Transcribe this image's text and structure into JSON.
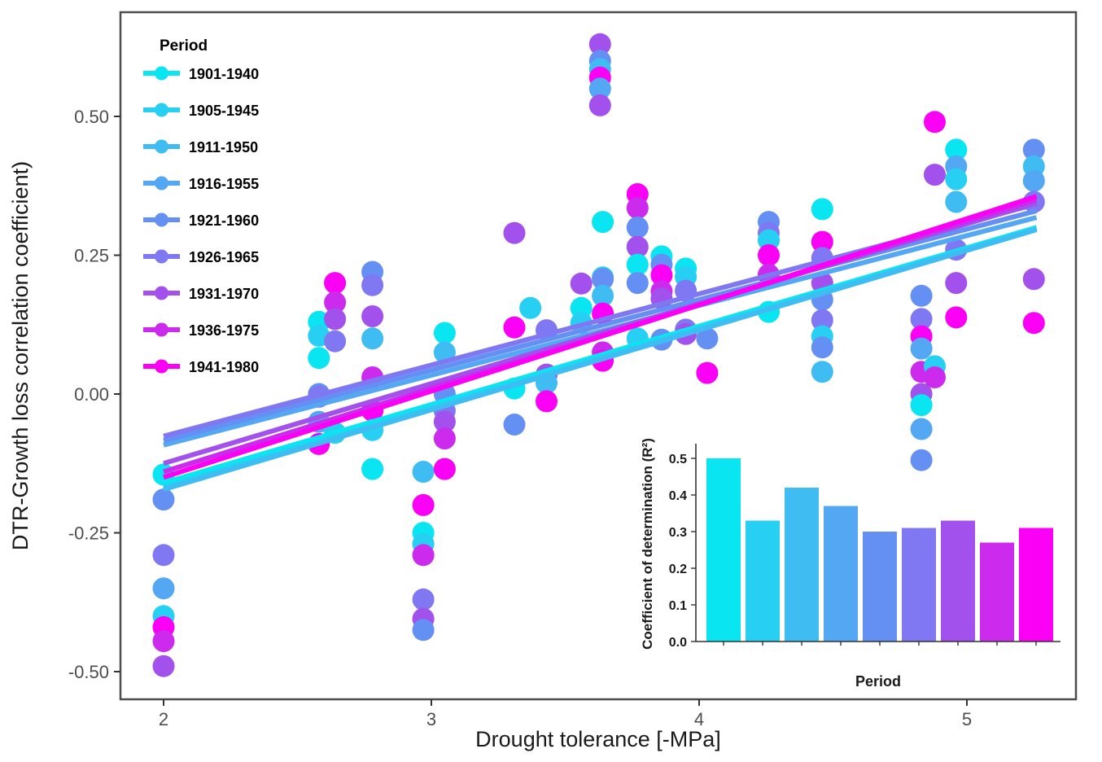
{
  "figure": {
    "background": "#FFFFFF",
    "panel_border_color": "#4D4D4D",
    "tick_color": "#333333",
    "tick_label_color": "#4D4D4D"
  },
  "chart_data": {
    "type": "scatter",
    "title": "",
    "xlabel": "Drought tolerance [-MPa]",
    "ylabel": "DTR-Growth loss correlation coefficient)",
    "xlim": [
      1.84,
      5.41
    ],
    "ylim": [
      -0.555,
      0.69
    ],
    "xticks": {
      "values": [
        2,
        3,
        4,
        5
      ],
      "labels": [
        "2",
        "3",
        "4",
        "5"
      ]
    },
    "yticks": {
      "values": [
        0.5,
        0.25,
        0,
        -0.25,
        -0.5
      ],
      "labels": [
        "0.50",
        "0.25",
        "0.00",
        "-0.25",
        "-0.50"
      ]
    },
    "grid": "off",
    "legend_title": "Period",
    "legend_position": "top-left-inside",
    "series": [
      {
        "name": "1901-1940",
        "color": "#0AE5F2"
      },
      {
        "name": "1905-1945",
        "color": "#27CFF2"
      },
      {
        "name": "1911-1950",
        "color": "#3FBCF2"
      },
      {
        "name": "1916-1955",
        "color": "#53A7F3"
      },
      {
        "name": "1921-1960",
        "color": "#6590F3"
      },
      {
        "name": "1926-1965",
        "color": "#8078F2"
      },
      {
        "name": "1931-1970",
        "color": "#A251ED"
      },
      {
        "name": "1936-1975",
        "color": "#CC2BEE"
      },
      {
        "name": "1941-1980",
        "color": "#FA00F5"
      }
    ],
    "points_format": "[drought_tolerance_x, correlation_y, series_index]",
    "points": [
      [
        2.0,
        -0.145,
        0
      ],
      [
        2.0,
        -0.19,
        4
      ],
      [
        2.0,
        -0.29,
        5
      ],
      [
        2.0,
        -0.35,
        3
      ],
      [
        2.0,
        -0.4,
        1
      ],
      [
        2.0,
        -0.42,
        8
      ],
      [
        2.0,
        -0.445,
        7
      ],
      [
        2.0,
        -0.49,
        6
      ],
      [
        2.58,
        0.13,
        0
      ],
      [
        2.58,
        0.105,
        1
      ],
      [
        2.58,
        0.065,
        0
      ],
      [
        2.58,
        0.0,
        4
      ],
      [
        2.58,
        -0.005,
        5
      ],
      [
        2.58,
        -0.05,
        3
      ],
      [
        2.58,
        -0.09,
        8
      ],
      [
        2.64,
        0.2,
        8
      ],
      [
        2.64,
        0.165,
        7
      ],
      [
        2.64,
        0.135,
        6
      ],
      [
        2.64,
        0.095,
        5
      ],
      [
        2.64,
        -0.07,
        1
      ],
      [
        2.78,
        0.22,
        4
      ],
      [
        2.78,
        0.196,
        5
      ],
      [
        2.78,
        0.14,
        6
      ],
      [
        2.78,
        0.1,
        2
      ],
      [
        2.78,
        0.03,
        7
      ],
      [
        2.78,
        -0.03,
        8
      ],
      [
        2.78,
        -0.065,
        1
      ],
      [
        2.78,
        -0.135,
        0
      ],
      [
        2.97,
        -0.14,
        2
      ],
      [
        2.97,
        -0.2,
        8
      ],
      [
        2.97,
        -0.25,
        0
      ],
      [
        2.97,
        -0.27,
        1
      ],
      [
        2.97,
        -0.29,
        7
      ],
      [
        2.97,
        -0.37,
        5
      ],
      [
        2.97,
        -0.405,
        6
      ],
      [
        2.97,
        -0.425,
        4
      ],
      [
        3.05,
        0.11,
        0
      ],
      [
        3.05,
        0.075,
        2
      ],
      [
        3.05,
        0.0,
        4
      ],
      [
        3.05,
        -0.03,
        5
      ],
      [
        3.05,
        -0.05,
        6
      ],
      [
        3.05,
        -0.08,
        7
      ],
      [
        3.05,
        -0.135,
        8
      ],
      [
        3.31,
        0.29,
        6
      ],
      [
        3.31,
        0.12,
        8
      ],
      [
        3.31,
        0.01,
        0
      ],
      [
        3.31,
        -0.055,
        4
      ],
      [
        3.37,
        0.155,
        1
      ],
      [
        3.43,
        0.115,
        5
      ],
      [
        3.43,
        0.035,
        6
      ],
      [
        3.43,
        0.02,
        2
      ],
      [
        3.43,
        -0.013,
        8
      ],
      [
        3.56,
        0.199,
        6
      ],
      [
        3.56,
        0.155,
        0
      ],
      [
        3.56,
        0.128,
        1
      ],
      [
        3.63,
        0.63,
        6
      ],
      [
        3.63,
        0.6,
        4
      ],
      [
        3.63,
        0.585,
        2
      ],
      [
        3.63,
        0.57,
        8
      ],
      [
        3.63,
        0.55,
        3
      ],
      [
        3.63,
        0.52,
        6
      ],
      [
        3.64,
        0.31,
        0
      ],
      [
        3.64,
        0.21,
        1
      ],
      [
        3.64,
        0.207,
        4
      ],
      [
        3.64,
        0.177,
        2
      ],
      [
        3.64,
        0.145,
        8
      ],
      [
        3.64,
        0.075,
        7
      ],
      [
        3.64,
        0.06,
        8
      ],
      [
        3.77,
        0.36,
        8
      ],
      [
        3.77,
        0.335,
        7
      ],
      [
        3.77,
        0.3,
        4
      ],
      [
        3.77,
        0.265,
        6
      ],
      [
        3.77,
        0.233,
        0
      ],
      [
        3.77,
        0.2,
        4
      ],
      [
        3.77,
        0.1,
        1
      ],
      [
        3.86,
        0.248,
        0
      ],
      [
        3.86,
        0.233,
        4
      ],
      [
        3.86,
        0.214,
        8
      ],
      [
        3.86,
        0.185,
        7
      ],
      [
        3.86,
        0.172,
        6
      ],
      [
        3.86,
        0.098,
        4
      ],
      [
        3.95,
        0.226,
        0
      ],
      [
        3.95,
        0.211,
        1
      ],
      [
        3.95,
        0.186,
        5
      ],
      [
        3.95,
        0.116,
        5
      ],
      [
        3.95,
        0.108,
        6
      ],
      [
        4.03,
        0.1,
        4
      ],
      [
        4.03,
        0.038,
        8
      ],
      [
        4.26,
        0.31,
        4
      ],
      [
        4.26,
        0.29,
        5
      ],
      [
        4.26,
        0.277,
        1
      ],
      [
        4.26,
        0.25,
        8
      ],
      [
        4.26,
        0.215,
        7
      ],
      [
        4.26,
        0.148,
        0
      ],
      [
        4.46,
        0.333,
        0
      ],
      [
        4.46,
        0.274,
        8
      ],
      [
        4.46,
        0.245,
        5
      ],
      [
        4.46,
        0.2,
        6
      ],
      [
        4.46,
        0.17,
        4
      ],
      [
        4.46,
        0.133,
        5
      ],
      [
        4.46,
        0.104,
        1
      ],
      [
        4.46,
        0.084,
        4
      ],
      [
        4.46,
        0.04,
        2
      ],
      [
        4.83,
        0.177,
        4
      ],
      [
        4.83,
        0.135,
        5
      ],
      [
        4.83,
        0.104,
        8
      ],
      [
        4.83,
        0.082,
        3
      ],
      [
        4.83,
        0.04,
        7
      ],
      [
        4.83,
        0.0,
        6
      ],
      [
        4.83,
        -0.02,
        0
      ],
      [
        4.83,
        -0.063,
        3
      ],
      [
        4.83,
        -0.119,
        4
      ],
      [
        4.88,
        0.49,
        8
      ],
      [
        4.88,
        0.395,
        6
      ],
      [
        4.88,
        0.05,
        1
      ],
      [
        4.88,
        0.03,
        7
      ],
      [
        4.96,
        0.44,
        0
      ],
      [
        4.96,
        0.41,
        3
      ],
      [
        4.96,
        0.387,
        1
      ],
      [
        4.96,
        0.346,
        2
      ],
      [
        4.96,
        0.26,
        5
      ],
      [
        4.96,
        0.2,
        6
      ],
      [
        4.96,
        0.138,
        8
      ],
      [
        5.25,
        0.44,
        4
      ],
      [
        5.25,
        0.41,
        2
      ],
      [
        5.25,
        0.384,
        3
      ],
      [
        5.25,
        0.346,
        5
      ],
      [
        5.25,
        0.207,
        6
      ],
      [
        5.25,
        0.128,
        8
      ]
    ],
    "trend_lines": [
      {
        "series": 0,
        "x": [
          2.0,
          5.26
        ],
        "y": [
          -0.16,
          0.3
        ]
      },
      {
        "series": 1,
        "x": [
          2.0,
          5.26
        ],
        "y": [
          -0.168,
          0.298
        ]
      },
      {
        "series": 2,
        "x": [
          2.0,
          5.26
        ],
        "y": [
          -0.172,
          0.296
        ]
      },
      {
        "series": 3,
        "x": [
          2.0,
          5.26
        ],
        "y": [
          -0.092,
          0.318
        ]
      },
      {
        "series": 4,
        "x": [
          2.0,
          5.26
        ],
        "y": [
          -0.084,
          0.33
        ]
      },
      {
        "series": 5,
        "x": [
          2.0,
          5.26
        ],
        "y": [
          -0.076,
          0.342
        ]
      },
      {
        "series": 6,
        "x": [
          2.0,
          5.26
        ],
        "y": [
          -0.125,
          0.344
        ]
      },
      {
        "series": 7,
        "x": [
          2.0,
          5.26
        ],
        "y": [
          -0.14,
          0.35
        ]
      },
      {
        "series": 8,
        "x": [
          2.0,
          5.26
        ],
        "y": [
          -0.15,
          0.356
        ]
      }
    ],
    "inset": {
      "type": "bar",
      "ylabel": "Coefficient of determination (R²)",
      "xlabel": "Period",
      "categories": [
        "1901-1940",
        "1905-1945",
        "1911-1950",
        "1916-1955",
        "1921-1960",
        "1926-1965",
        "1931-1970",
        "1936-1975",
        "1941-1980"
      ],
      "values": [
        0.5,
        0.33,
        0.42,
        0.37,
        0.3,
        0.31,
        0.33,
        0.27,
        0.31
      ],
      "ylim": [
        0,
        0.54
      ],
      "yticks": {
        "values": [
          0.0,
          0.1,
          0.2,
          0.3,
          0.4,
          0.5
        ],
        "labels": [
          "0.0",
          "0.1",
          "0.2",
          "0.3",
          "0.4",
          "0.5"
        ]
      },
      "x_tick_labels_visible": false
    }
  }
}
